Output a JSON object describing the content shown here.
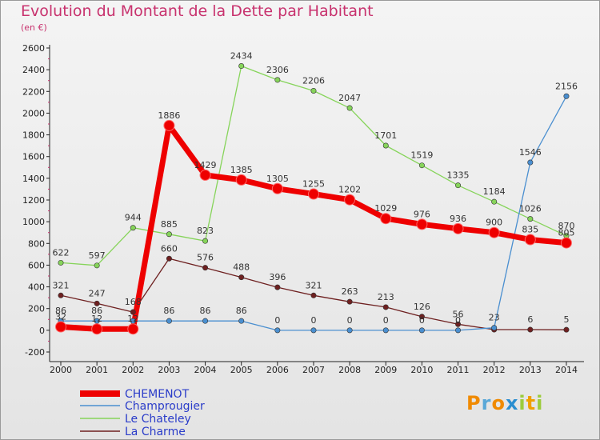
{
  "title": "Evolution du Montant de la Dette par Habitant",
  "subtitle": "(en €)",
  "logo": "Proxiti",
  "colors": {
    "title": "#c8326e",
    "legend_text": "#2a3cc9",
    "series": [
      "#ee0000",
      "#4a8fd0",
      "#86d45a",
      "#6e2020"
    ]
  },
  "chart_data": {
    "type": "line",
    "title": "Evolution du Montant de la Dette par Habitant",
    "subtitle": "(en €)",
    "x": [
      2000,
      2001,
      2002,
      2003,
      2004,
      2005,
      2006,
      2007,
      2008,
      2009,
      2010,
      2011,
      2012,
      2013,
      2014
    ],
    "ylim": [
      -200,
      2600
    ],
    "yticks": [
      -200,
      0,
      200,
      400,
      600,
      800,
      1000,
      1200,
      1400,
      1600,
      1800,
      2000,
      2200,
      2400,
      2600
    ],
    "grid": false,
    "legend_position": "bottom-left",
    "series": [
      {
        "name": "CHEMENOT",
        "values": [
          32,
          12,
          12,
          1886,
          1429,
          1385,
          1305,
          1255,
          1202,
          1029,
          976,
          936,
          900,
          835,
          805
        ]
      },
      {
        "name": "Champrougier",
        "values": [
          86,
          86,
          86,
          86,
          86,
          86,
          0,
          0,
          0,
          0,
          0,
          0,
          23,
          1546,
          2156
        ]
      },
      {
        "name": "Le Chateley",
        "values": [
          622,
          597,
          944,
          885,
          823,
          2434,
          2306,
          2206,
          2047,
          1701,
          1519,
          1335,
          1184,
          1026,
          870
        ]
      },
      {
        "name": "La Charme",
        "values": [
          321,
          247,
          168,
          660,
          576,
          488,
          396,
          321,
          263,
          213,
          126,
          56,
          6,
          6,
          5
        ]
      }
    ],
    "labels": [
      [
        "32",
        "12",
        "12",
        "1886",
        "1429",
        "1385",
        "1305",
        "1255",
        "1202",
        "1029",
        "976",
        "936",
        "900",
        "835",
        "805"
      ],
      [
        "86",
        "86",
        "",
        "86",
        "86",
        "86",
        "0",
        "0",
        "0",
        "0",
        "0",
        "0",
        "23",
        "1546",
        "2156"
      ],
      [
        "622",
        "597",
        "944",
        "885",
        "823",
        "2434",
        "2306",
        "2206",
        "2047",
        "1701",
        "1519",
        "1335",
        "1184",
        "1026",
        "870"
      ],
      [
        "321",
        "247",
        "168",
        "660",
        "576",
        "488",
        "396",
        "321",
        "263",
        "213",
        "126",
        "56",
        "",
        "6",
        "5"
      ]
    ]
  }
}
